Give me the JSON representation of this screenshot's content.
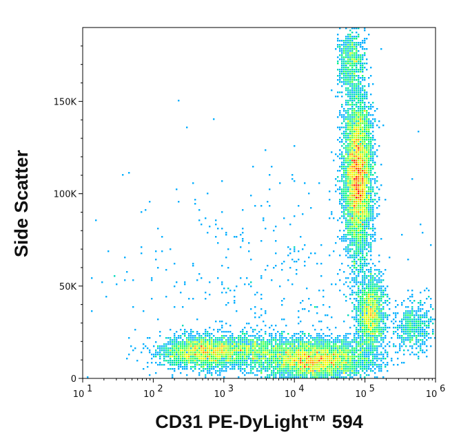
{
  "chart_data": {
    "type": "scatter",
    "subtype": "flow-cytometry-density-dot-plot",
    "xlabel": "CD31 PE-DyLight™ 594",
    "ylabel": "Side Scatter",
    "x_scale": "log",
    "xlim": [
      10,
      1000000
    ],
    "ylim": [
      0,
      190000
    ],
    "x_ticks": [
      {
        "value": 10,
        "base": "10",
        "exp": "1"
      },
      {
        "value": 100,
        "base": "10",
        "exp": "2"
      },
      {
        "value": 1000,
        "base": "10",
        "exp": "3"
      },
      {
        "value": 10000,
        "base": "10",
        "exp": "4"
      },
      {
        "value": 100000,
        "base": "10",
        "exp": "5"
      },
      {
        "value": 1000000,
        "base": "10",
        "exp": "6"
      }
    ],
    "y_ticks": [
      {
        "value": 0,
        "label": "0"
      },
      {
        "value": 50000,
        "label": "50K"
      },
      {
        "value": 100000,
        "label": "100K"
      },
      {
        "value": 150000,
        "label": "150K"
      }
    ],
    "grid": false,
    "legend": "none",
    "colormap": [
      "#0000ff",
      "#00bfff",
      "#00ff66",
      "#ffff00",
      "#ff0000"
    ],
    "populations": [
      {
        "x_center": 80000,
        "y_center": 110000,
        "x_spread_decades": 0.1,
        "y_spread": 22000,
        "weight": 0.34
      },
      {
        "x_center": 20000,
        "y_center": 10000,
        "x_spread_decades": 0.4,
        "y_spread": 5500,
        "weight": 0.26
      },
      {
        "x_center": 500,
        "y_center": 14000,
        "x_spread_decades": 0.3,
        "y_spread": 4500,
        "weight": 0.14
      },
      {
        "x_center": 2500,
        "y_center": 15000,
        "x_spread_decades": 0.3,
        "y_spread": 4500,
        "weight": 0.06
      },
      {
        "x_center": 120000,
        "y_center": 35000,
        "x_spread_decades": 0.1,
        "y_spread": 10000,
        "weight": 0.1
      },
      {
        "x_center": 500000,
        "y_center": 28000,
        "x_spread_decades": 0.15,
        "y_spread": 7000,
        "weight": 0.03
      },
      {
        "x_center": 65000,
        "y_center": 172000,
        "x_spread_decades": 0.1,
        "y_spread": 9000,
        "weight": 0.04
      },
      {
        "x_center": 3000,
        "y_center": 45000,
        "x_spread_decades": 1.0,
        "y_spread": 35000,
        "weight": 0.03
      }
    ]
  }
}
